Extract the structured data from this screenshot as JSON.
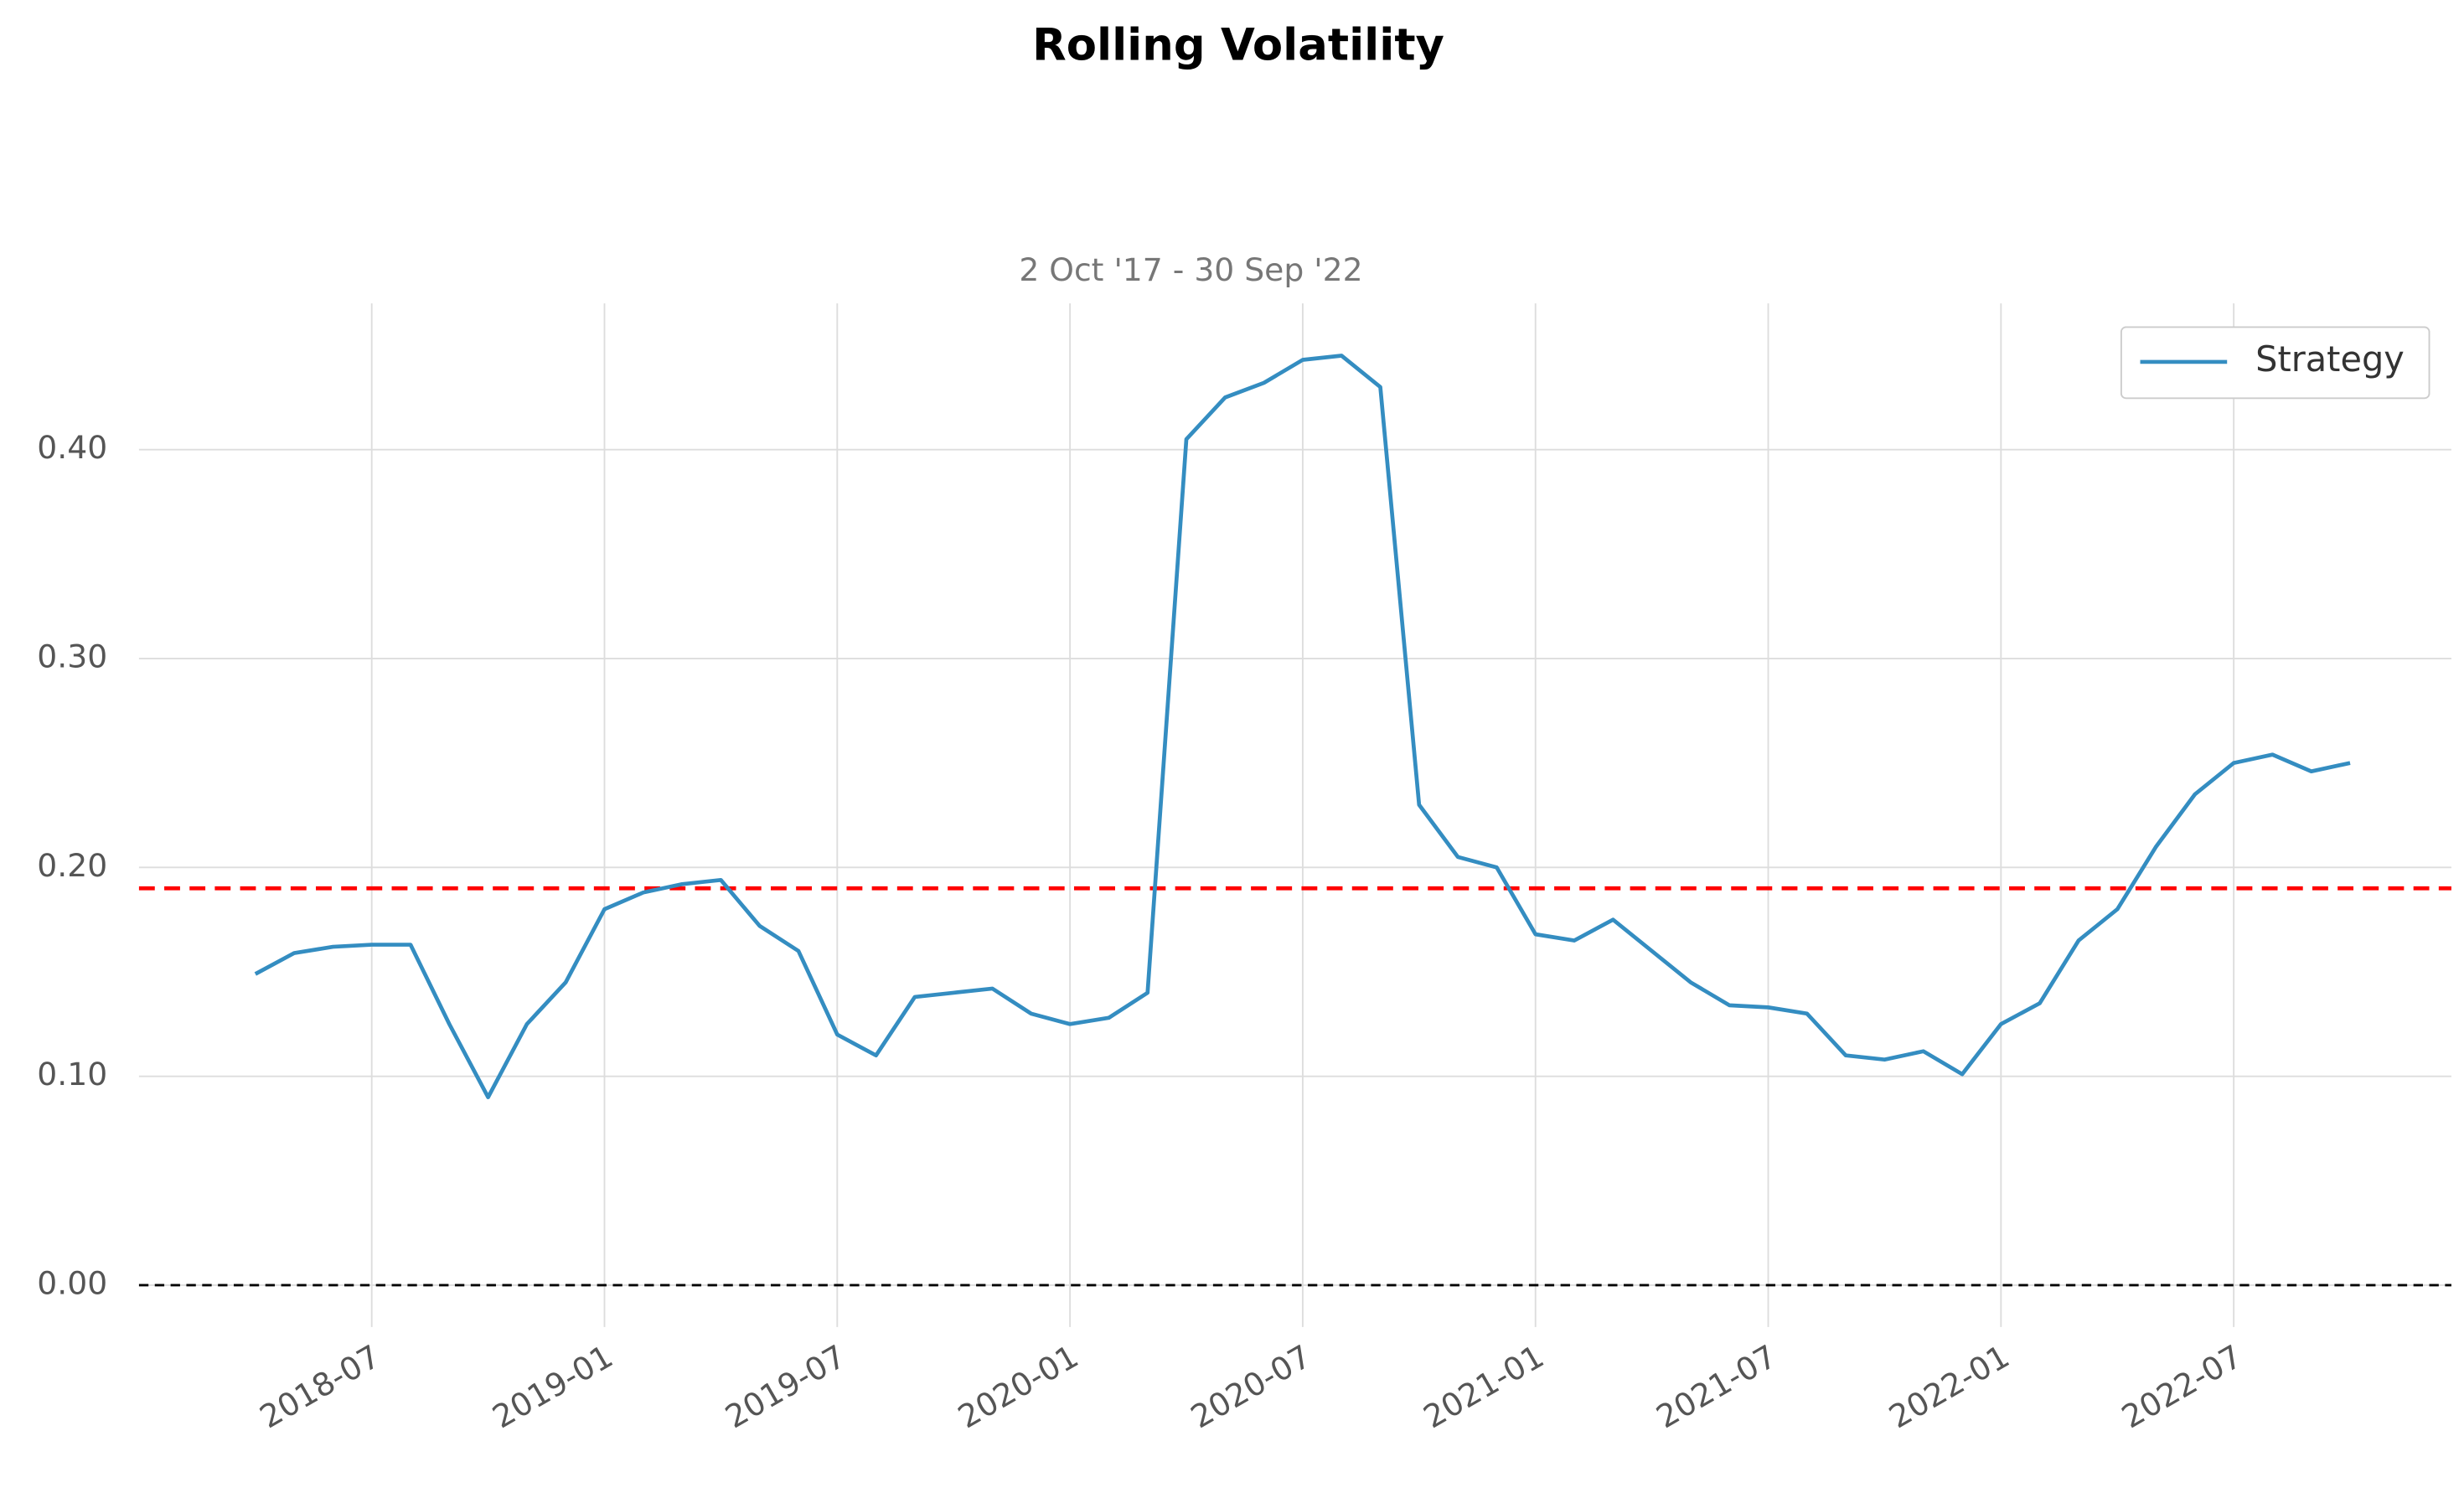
{
  "chart_data": {
    "type": "line",
    "title": "Rolling Volatility",
    "subtitle": "2 Oct '17 - 30 Sep '22",
    "x": [
      "2018-04",
      "2018-05",
      "2018-06",
      "2018-07",
      "2018-08",
      "2018-09",
      "2018-10",
      "2018-11",
      "2018-12",
      "2019-01",
      "2019-02",
      "2019-03",
      "2019-04",
      "2019-05",
      "2019-06",
      "2019-07",
      "2019-08",
      "2019-09",
      "2019-10",
      "2019-11",
      "2019-12",
      "2020-01",
      "2020-02",
      "2020-03",
      "2020-04",
      "2020-05",
      "2020-06",
      "2020-07",
      "2020-08",
      "2020-09",
      "2020-10",
      "2020-11",
      "2020-12",
      "2021-01",
      "2021-02",
      "2021-03",
      "2021-04",
      "2021-05",
      "2021-06",
      "2021-07",
      "2021-08",
      "2021-09",
      "2021-10",
      "2021-11",
      "2021-12",
      "2022-01",
      "2022-02",
      "2022-03",
      "2022-04",
      "2022-05",
      "2022-06",
      "2022-07",
      "2022-08",
      "2022-09",
      "2022-10"
    ],
    "series": [
      {
        "name": "Strategy",
        "color": "#348dc1",
        "values": [
          0.149,
          0.159,
          0.162,
          0.163,
          0.163,
          0.125,
          0.09,
          0.125,
          0.145,
          0.18,
          0.188,
          0.192,
          0.194,
          0.172,
          0.16,
          0.12,
          0.11,
          0.138,
          0.14,
          0.142,
          0.13,
          0.125,
          0.128,
          0.14,
          0.405,
          0.425,
          0.432,
          0.443,
          0.445,
          0.43,
          0.23,
          0.205,
          0.2,
          0.168,
          0.165,
          0.175,
          0.16,
          0.145,
          0.134,
          0.133,
          0.13,
          0.11,
          0.108,
          0.112,
          0.101,
          0.125,
          0.135,
          0.165,
          0.18,
          0.21,
          0.235,
          0.25,
          0.254,
          0.246,
          0.25
        ]
      }
    ],
    "hlines": [
      {
        "value": 0.19,
        "color": "#ff0000"
      },
      {
        "value": 0,
        "color": "#000000"
      }
    ],
    "xlim": [
      "2018-01",
      "2022-12"
    ],
    "xticks": [
      "2018-07",
      "2019-01",
      "2019-07",
      "2020-01",
      "2020-07",
      "2021-01",
      "2021-07",
      "2022-01",
      "2022-07"
    ],
    "ylim": [
      -0.02,
      0.47
    ],
    "yticks": [
      {
        "value": 0,
        "label": "0.00"
      },
      {
        "value": 0.1,
        "label": "0.10"
      },
      {
        "value": 0.2,
        "label": "0.20"
      },
      {
        "value": 0.3,
        "label": "0.30"
      },
      {
        "value": 0.4,
        "label": "0.40"
      }
    ],
    "grid": true,
    "legend": "upper right"
  }
}
